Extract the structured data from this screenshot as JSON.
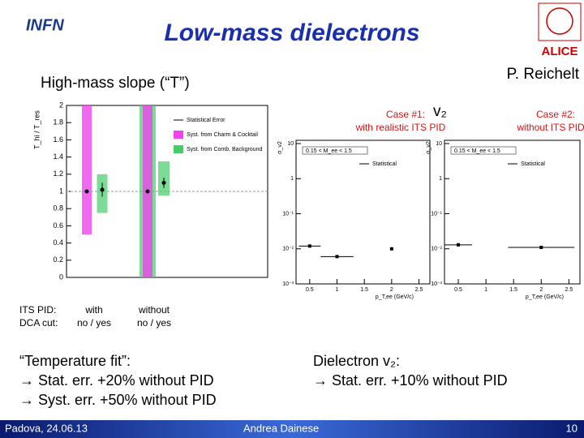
{
  "header": {
    "title": "Low-mass dielectrons",
    "logo_left": "INFN",
    "logo_right": "ALICE",
    "author": "P. Reichelt"
  },
  "left": {
    "heading": "High-mass slope (“T”)",
    "plot": {
      "y_label": "T_hi / T_res",
      "ylim": [
        0,
        2
      ],
      "yticks": [
        0,
        0.2,
        0.4,
        0.6,
        0.8,
        1,
        1.2,
        1.4,
        1.6,
        1.8,
        2
      ],
      "legend": [
        "Statistical Error",
        "Syst. from Charm & Cocktail",
        "Syst. from Comb. Background"
      ],
      "legend_colors": [
        "#000000",
        "#ee44ee",
        "#44cc66"
      ],
      "values": [
        1.0,
        1.02,
        1.0,
        1.1
      ],
      "errors": [
        0.02,
        0.08,
        0.02,
        0.06
      ],
      "syst_charm_low": [
        0.5,
        null,
        0,
        null
      ],
      "syst_charm_high": [
        2,
        null,
        2,
        null
      ],
      "syst_comb_low": [
        null,
        0.75,
        0,
        0.95
      ],
      "syst_comb_high": [
        null,
        1.2,
        2,
        1.35
      ]
    },
    "rows": [
      [
        "ITS PID:",
        "with",
        "without"
      ],
      [
        "DCA cut:",
        "no / yes",
        "no / yes"
      ]
    ],
    "notes": [
      "“Temperature fit”:",
      "→ Stat. err. +20% without PID",
      "→ Syst. err. +50% without PID"
    ]
  },
  "right": {
    "v2_label": "v₂",
    "panels": [
      {
        "case": "Case #1:",
        "case_desc": "with realistic ITS PID",
        "y_label": "σ_v2",
        "legend": "Statistical",
        "cut": "0.15 < M_ee < 1.5",
        "x_label": "p_T,ee (GeV/c)",
        "ylim": [
          0.001,
          10
        ],
        "yticks": [
          10,
          1,
          {
            "value": 0.1,
            "label": "10⁻¹"
          },
          {
            "value": 0.01,
            "label": "10⁻²"
          },
          {
            "value": 0.001,
            "label": "10⁻³"
          }
        ],
        "xlim": [
          0.25,
          2.7
        ],
        "xticks": [
          0.5,
          1,
          1.5,
          2,
          2.5
        ],
        "x": [
          0.5,
          1.0,
          2.0
        ],
        "values": [
          0.012,
          0.006,
          0.01
        ],
        "xerr": [
          0.2,
          0.3,
          0
        ]
      },
      {
        "case": "Case #2:",
        "case_desc": "without ITS PID",
        "y_label": "σ_v2",
        "legend": "Statistical",
        "cut": "0.15 < M_ee < 1.5",
        "x_label": "p_T,ee (GeV/c)",
        "ylim": [
          0.001,
          10
        ],
        "yticks": [
          10,
          1,
          {
            "value": 0.1,
            "label": "10⁻¹"
          },
          {
            "value": 0.01,
            "label": "10⁻²"
          },
          {
            "value": 0.001,
            "label": "10⁻³"
          }
        ],
        "xlim": [
          0.25,
          2.7
        ],
        "xticks": [
          0.5,
          1,
          1.5,
          2,
          2.5
        ],
        "x": [
          0.5,
          2.0
        ],
        "values": [
          0.013,
          0.011
        ],
        "xerr": [
          0.25,
          0.6
        ]
      }
    ],
    "notes": [
      "Dielectron v₂:",
      "→ Stat. err. +10% without PID"
    ]
  },
  "footer": {
    "place_date": "Padova, 24.06.13",
    "speaker": "Andrea Dainese",
    "page": "10"
  }
}
